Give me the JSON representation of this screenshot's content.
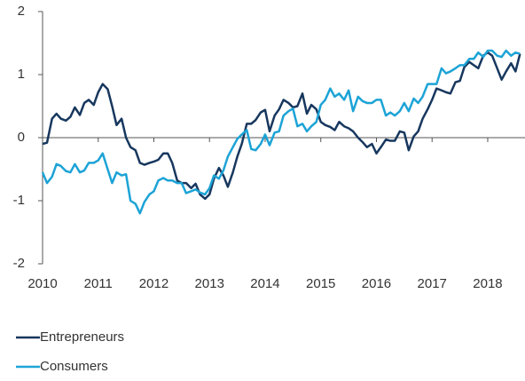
{
  "chart_data": {
    "type": "line",
    "x": [
      2010.0,
      2010.08,
      2010.17,
      2010.25,
      2010.33,
      2010.42,
      2010.5,
      2010.58,
      2010.67,
      2010.75,
      2010.83,
      2010.92,
      2011.0,
      2011.08,
      2011.17,
      2011.25,
      2011.33,
      2011.42,
      2011.5,
      2011.58,
      2011.67,
      2011.75,
      2011.83,
      2011.92,
      2012.0,
      2012.08,
      2012.17,
      2012.25,
      2012.33,
      2012.42,
      2012.5,
      2012.58,
      2012.67,
      2012.75,
      2012.83,
      2012.92,
      2013.0,
      2013.08,
      2013.17,
      2013.25,
      2013.33,
      2013.42,
      2013.5,
      2013.58,
      2013.67,
      2013.75,
      2013.83,
      2013.92,
      2014.0,
      2014.08,
      2014.17,
      2014.25,
      2014.33,
      2014.42,
      2014.5,
      2014.58,
      2014.67,
      2014.75,
      2014.83,
      2014.92,
      2015.0,
      2015.08,
      2015.17,
      2015.25,
      2015.33,
      2015.42,
      2015.5,
      2015.58,
      2015.67,
      2015.75,
      2015.83,
      2015.92,
      2016.0,
      2016.08,
      2016.17,
      2016.25,
      2016.33,
      2016.42,
      2016.5,
      2016.58,
      2016.67,
      2016.75,
      2016.83,
      2016.92,
      2017.0,
      2017.08,
      2017.17,
      2017.25,
      2017.33,
      2017.42,
      2017.5,
      2017.58,
      2017.67,
      2017.75,
      2017.83,
      2017.92,
      2018.0,
      2018.08,
      2018.17,
      2018.25,
      2018.33,
      2018.42,
      2018.5,
      2018.58
    ],
    "series": [
      {
        "name": "Entrepreneurs",
        "color": "#17375e",
        "values": [
          -0.1,
          -0.08,
          0.3,
          0.38,
          0.3,
          0.27,
          0.33,
          0.48,
          0.36,
          0.55,
          0.6,
          0.52,
          0.72,
          0.85,
          0.77,
          0.5,
          0.2,
          0.3,
          0.0,
          -0.15,
          -0.2,
          -0.4,
          -0.43,
          -0.4,
          -0.38,
          -0.35,
          -0.25,
          -0.25,
          -0.4,
          -0.68,
          -0.72,
          -0.72,
          -0.8,
          -0.73,
          -0.9,
          -0.97,
          -0.9,
          -0.65,
          -0.48,
          -0.6,
          -0.78,
          -0.55,
          -0.3,
          -0.1,
          0.22,
          0.22,
          0.28,
          0.4,
          0.44,
          0.1,
          0.35,
          0.45,
          0.6,
          0.55,
          0.48,
          0.5,
          0.7,
          0.38,
          0.52,
          0.45,
          0.25,
          0.2,
          0.17,
          0.12,
          0.25,
          0.18,
          0.15,
          0.1,
          0.0,
          -0.07,
          -0.15,
          -0.1,
          -0.25,
          -0.15,
          -0.03,
          -0.05,
          -0.05,
          0.1,
          0.08,
          -0.2,
          0.02,
          0.1,
          0.3,
          0.45,
          0.6,
          0.78,
          0.75,
          0.72,
          0.7,
          0.88,
          0.9,
          1.12,
          1.2,
          1.15,
          1.1,
          1.3,
          1.35,
          1.3,
          1.1,
          0.92,
          1.05,
          1.18,
          1.05,
          1.33
        ]
      },
      {
        "name": "Consumers",
        "color": "#1ca3d6",
        "values": [
          -0.55,
          -0.72,
          -0.62,
          -0.42,
          -0.45,
          -0.53,
          -0.55,
          -0.42,
          -0.55,
          -0.52,
          -0.4,
          -0.4,
          -0.36,
          -0.25,
          -0.5,
          -0.72,
          -0.55,
          -0.6,
          -0.58,
          -1.0,
          -1.05,
          -1.2,
          -1.02,
          -0.9,
          -0.85,
          -0.68,
          -0.64,
          -0.68,
          -0.68,
          -0.72,
          -0.72,
          -0.88,
          -0.85,
          -0.82,
          -0.87,
          -0.9,
          -0.8,
          -0.6,
          -0.65,
          -0.52,
          -0.3,
          -0.15,
          -0.02,
          0.05,
          0.12,
          -0.18,
          -0.2,
          -0.1,
          0.05,
          -0.12,
          0.08,
          0.1,
          0.35,
          0.42,
          0.46,
          0.18,
          0.22,
          0.1,
          0.18,
          0.25,
          0.52,
          0.6,
          0.78,
          0.65,
          0.7,
          0.6,
          0.75,
          0.42,
          0.65,
          0.58,
          0.55,
          0.55,
          0.6,
          0.6,
          0.35,
          0.4,
          0.35,
          0.42,
          0.55,
          0.42,
          0.62,
          0.55,
          0.65,
          0.85,
          0.85,
          0.85,
          1.1,
          1.02,
          1.05,
          1.1,
          1.15,
          1.15,
          1.25,
          1.25,
          1.35,
          1.28,
          1.38,
          1.38,
          1.3,
          1.28,
          1.38,
          1.3,
          1.35,
          1.33
        ]
      }
    ],
    "xlim": [
      2010,
      2018.67
    ],
    "xticks": [
      2010,
      2011,
      2012,
      2013,
      2014,
      2015,
      2016,
      2017,
      2018
    ],
    "ylim": [
      -2,
      2
    ],
    "yticks": [
      -2,
      -1,
      0,
      1,
      2
    ],
    "grid": false,
    "legend": "bottom-left"
  }
}
